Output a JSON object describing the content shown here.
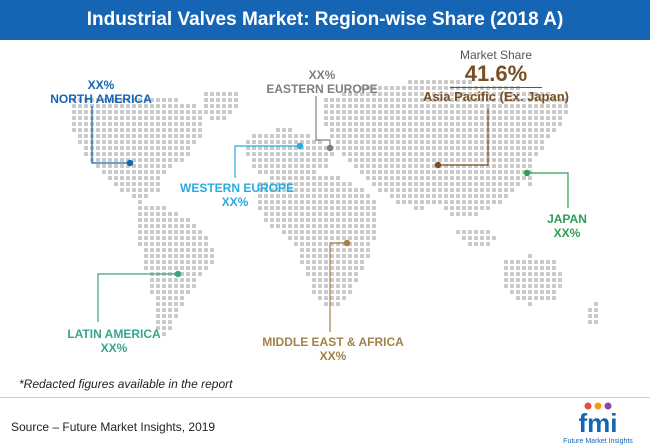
{
  "header": {
    "title": "Industrial Valves Market: Region-wise Share (2018 A)"
  },
  "highlight": {
    "caption": "Market Share",
    "value": "41.6%",
    "region": "Asia Pacific (Ex. Japan)"
  },
  "regions": {
    "north_america": {
      "value": "XX%",
      "name": "NORTH AMERICA",
      "color": "#1565b4"
    },
    "eastern_europe": {
      "value": "XX%",
      "name": "EASTERN EUROPE",
      "color": "#7f7f7f"
    },
    "western_europe": {
      "name": "WESTERN EUROPE",
      "value": "XX%",
      "color": "#29abe2"
    },
    "latin_america": {
      "name": "LATIN AMERICA",
      "value": "XX%",
      "color": "#3aa38c"
    },
    "middle_east_africa": {
      "name": "MIDDLE EAST & AFRICA",
      "value": "XX%",
      "color": "#a1824a"
    },
    "japan": {
      "name": "JAPAN",
      "value": "XX%",
      "color": "#2d9e57"
    },
    "asia_pacific": {
      "color": "#7a4e24"
    }
  },
  "footer": {
    "note": "*Redacted figures available in the report",
    "source": "Source – Future Market Insights, 2019"
  },
  "logo": {
    "wordmark": "fmi",
    "tagline": "Future Market Insights"
  }
}
